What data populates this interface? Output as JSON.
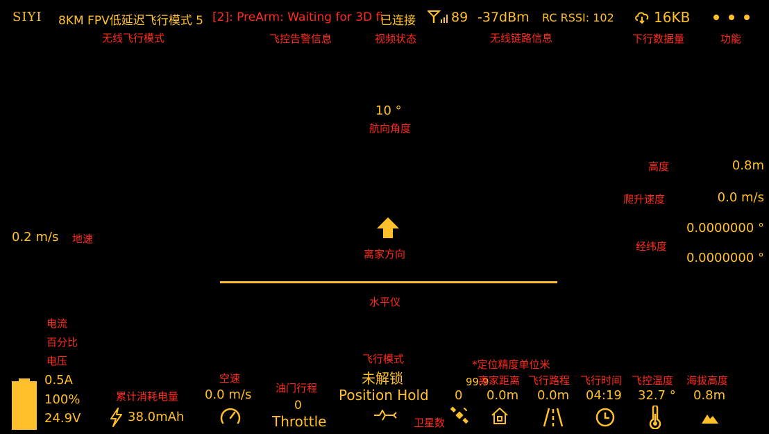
{
  "colors": {
    "accent": "#ffc02b",
    "annotation": "#ff2a1d",
    "background": "#000000"
  },
  "topbar": {
    "logo": "SIYI",
    "mode": "8KM FPV低延迟飞行模式 5",
    "alert": "[2]: PreArm: Waiting for 3D fi",
    "video_status": "已连接",
    "signal_value": "89",
    "dbm": "-37dBm",
    "rc_rssi": "RC RSSI: 102",
    "downlink": "16KB",
    "icons": [
      "signal-icon",
      "cloud-download-icon",
      "more-dots-icon"
    ]
  },
  "topbar_labels": {
    "mode": "无线飞行模式",
    "alert": "飞控告警信息",
    "video": "视频状态",
    "link": "无线链路信息",
    "downlink": "下行数据量",
    "menu": "功能"
  },
  "center": {
    "heading": "10 °",
    "heading_label": "航向角度",
    "home_label": "离家方向",
    "horizon_label": "水平仪"
  },
  "left": {
    "ground_speed": "0.2 m/s",
    "ground_speed_label": "地速"
  },
  "right": {
    "altitude_label": "高度",
    "altitude": "0.8m",
    "climb_label": "爬升速度",
    "climb": "0.0 m/s",
    "latlon_label": "经纬度",
    "lat": "0.0000000 °",
    "lon": "0.0000000 °"
  },
  "battery": {
    "labels": [
      "电流",
      "百分比",
      "电压"
    ],
    "current": "0.5A",
    "percent": "100%",
    "voltage": "24.9V",
    "level": 1.0
  },
  "bottom": {
    "consumed_label": "累计消耗电量",
    "consumed": "38.0mAh",
    "airspeed_label": "空速",
    "airspeed": "0.0 m/s",
    "throttle_label": "油门行程",
    "throttle_value": "0",
    "throttle_text": "Throttle",
    "mode_label": "飞行模式",
    "arm_status": "未解锁",
    "flight_mode": "Position Hold",
    "sat_count": "0",
    "sat_label": "卫星数",
    "hdop": "99.9",
    "precision_note": "*定位精度单位米",
    "home_dist_label": "离家距离",
    "home_dist": "0.0m",
    "path_label": "飞行路程",
    "path": "0.0m",
    "time_label": "飞行时间",
    "time": "04:19",
    "temp_label": "飞控温度",
    "temp": "32.7 °",
    "asl_label": "海拔高度",
    "asl": "0.8m"
  }
}
